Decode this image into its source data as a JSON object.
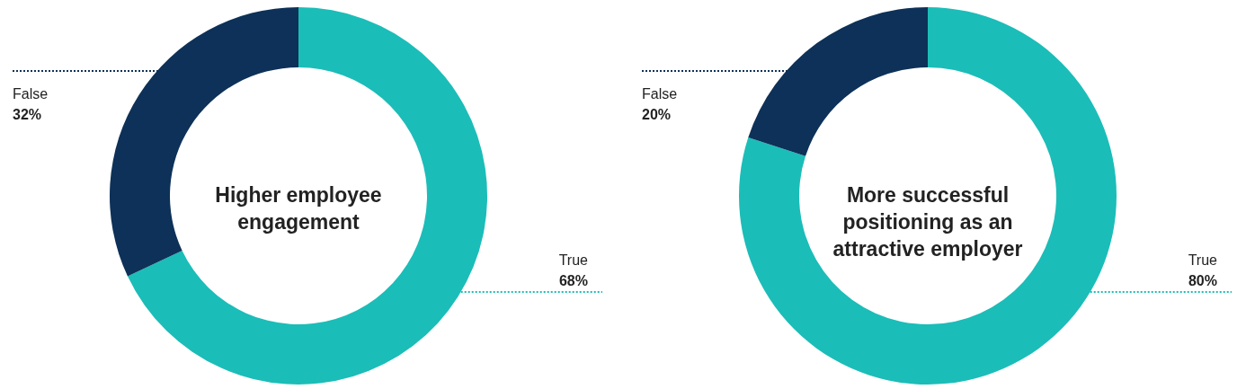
{
  "chart_data": [
    {
      "type": "donut",
      "title": "Higher employee engagement",
      "categories": [
        "True",
        "False"
      ],
      "values": [
        68,
        32
      ],
      "colors": [
        "#1bbdb8",
        "#0d3158"
      ],
      "value_labels": [
        "68%",
        "32%"
      ],
      "legend": false
    },
    {
      "type": "donut",
      "title": "More successful positioning as an attractive employer",
      "categories": [
        "True",
        "False"
      ],
      "values": [
        80,
        20
      ],
      "colors": [
        "#1bbdb8",
        "#0d3158"
      ],
      "value_labels": [
        "80%",
        "20%"
      ],
      "legend": false
    }
  ]
}
